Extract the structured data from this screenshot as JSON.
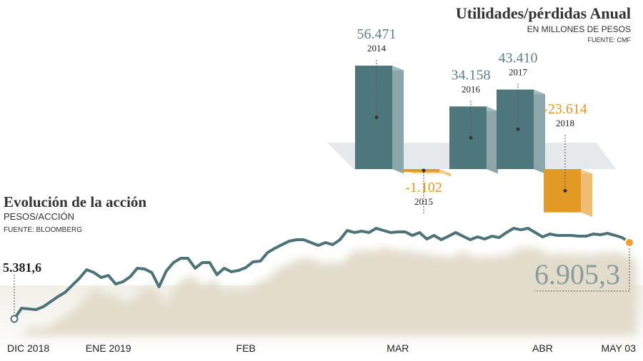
{
  "chart_data": [
    {
      "type": "bar3d",
      "title": "Utilidades/pérdidas Anual",
      "subtitle": "EN MILLONES DE PESOS",
      "source": "FUENTE: CMF",
      "categories": [
        "2014",
        "2015",
        "2016",
        "2017",
        "2018"
      ],
      "values": [
        56471,
        -1102,
        34158,
        43410,
        -23614
      ],
      "value_labels": [
        "56.471",
        "-1.102",
        "34.158",
        "43.410",
        "-23.614"
      ],
      "colors": [
        "#4e777d",
        "#e39a25",
        "#4e777d",
        "#4e777d",
        "#e39a25"
      ]
    },
    {
      "type": "line",
      "title": "Evolución de la acción",
      "subtitle": "PESOS/ACCIÓN",
      "source": "FUENTE: BLOOMBERG",
      "color": "#4d7378",
      "categories": [
        "DIC 2018",
        null,
        null,
        null,
        null,
        null,
        null,
        null,
        null,
        null,
        null,
        null,
        null,
        "ENE 2019",
        null,
        null,
        null,
        null,
        null,
        null,
        null,
        null,
        null,
        null,
        null,
        null,
        null,
        null,
        null,
        null,
        null,
        null,
        "FEB",
        null,
        null,
        null,
        null,
        null,
        null,
        null,
        null,
        null,
        null,
        null,
        null,
        null,
        null,
        null,
        null,
        null,
        null,
        null,
        null,
        "MAR",
        null,
        null,
        null,
        null,
        null,
        null,
        null,
        null,
        null,
        null,
        null,
        null,
        null,
        null,
        null,
        null,
        null,
        null,
        null,
        "ABR",
        null,
        null,
        null,
        null,
        null,
        null,
        null,
        null,
        null,
        null,
        null,
        "MAY 03"
      ],
      "values": [
        5381.6,
        5595,
        5581,
        5567,
        5624,
        5723,
        5823,
        5909,
        6051,
        6193,
        6364,
        6307,
        6207,
        6250,
        6079,
        6122,
        6222,
        6393,
        6378,
        6307,
        6022,
        6336,
        6507,
        6592,
        6592,
        6393,
        6507,
        6507,
        6264,
        6393,
        6322,
        6350,
        6407,
        6521,
        6535,
        6706,
        6791,
        6863,
        6934,
        6962,
        6962,
        6905,
        6848,
        6905,
        6863,
        6962,
        7147,
        7105,
        7133,
        7105,
        7190,
        7147,
        7105,
        7119,
        7119,
        7048,
        7105,
        6976,
        7048,
        6962,
        7033,
        7105,
        7033,
        6962,
        7019,
        6976,
        7033,
        7005,
        7105,
        7190,
        7161,
        7190,
        7105,
        7019,
        7076,
        7048,
        7048,
        7048,
        7033,
        7033,
        7076,
        7062,
        7090,
        7048,
        7005,
        6905.3
      ],
      "value_labels": [
        "5.381,6",
        null,
        null,
        null,
        null,
        null,
        null,
        null,
        null,
        null,
        null,
        null,
        null,
        null,
        null,
        null,
        null,
        null,
        null,
        null,
        null,
        null,
        null,
        null,
        null,
        null,
        null,
        null,
        null,
        null,
        null,
        null,
        null,
        null,
        null,
        null,
        null,
        null,
        null,
        null,
        null,
        null,
        null,
        null,
        null,
        null,
        null,
        null,
        null,
        null,
        null,
        null,
        null,
        null,
        null,
        null,
        null,
        null,
        null,
        null,
        null,
        null,
        null,
        null,
        null,
        null,
        null,
        null,
        null,
        null,
        null,
        null,
        null,
        null,
        null,
        null,
        null,
        null,
        null,
        null,
        null,
        null,
        null,
        null,
        null,
        "6.905,3"
      ]
    }
  ]
}
